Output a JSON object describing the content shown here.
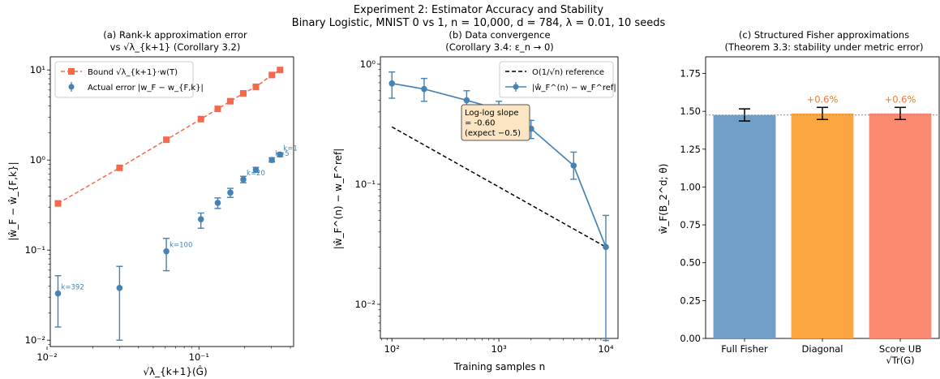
{
  "figure": {
    "suptitle_line1": "Experiment 2: Estimator Accuracy and Stability",
    "suptitle_line2": "Binary Logistic, MNIST 0 vs 1, n = 10,000, d = 784, λ = 0.01, 10 seeds"
  },
  "chart_data": [
    {
      "type": "scatter",
      "title_line1": "(a) Rank-k approximation error",
      "title_line2": "vs √λ_{k+1} (Corollary 3.2)",
      "xlabel": "√λ_{k+1}(Ĝ)",
      "ylabel": "|ŵ_F − ŵ_{F,k}|",
      "xscale": "log",
      "yscale": "log",
      "xlim": [
        0.0105,
        0.42
      ],
      "ylim": [
        0.0085,
        14
      ],
      "xticks": [
        0.01,
        0.1
      ],
      "xtick_labels": [
        "10⁻²",
        "10⁻¹"
      ],
      "yticks": [
        0.01,
        0.1,
        1,
        10
      ],
      "ytick_labels": [
        "10⁻²",
        "10⁻¹",
        "10⁰",
        "10¹"
      ],
      "legend_position": "top-left",
      "series": [
        {
          "name": "Bound √λ_{k+1}·w(T)",
          "color": "#f4694b",
          "marker": "square",
          "line": "dashed",
          "x": [
            0.0118,
            0.03,
            0.061,
            0.103,
            0.133,
            0.161,
            0.196,
            0.237,
            0.302,
            0.342
          ],
          "y": [
            0.33,
            0.82,
            1.68,
            2.85,
            3.7,
            4.5,
            5.5,
            6.5,
            8.8,
            10.0
          ]
        },
        {
          "name": "Actual error |w_F − w_{F,k}|",
          "color": "#4682b4",
          "marker": "circle",
          "x": [
            0.0118,
            0.03,
            0.061,
            0.103,
            0.133,
            0.161,
            0.196,
            0.237,
            0.302,
            0.342
          ],
          "y": [
            0.033,
            0.038,
            0.097,
            0.22,
            0.335,
            0.435,
            0.61,
            0.78,
            1.0,
            1.15
          ],
          "err_low": [
            0.014,
            0.01,
            0.059,
            0.175,
            0.29,
            0.385,
            0.56,
            0.73,
            0.95,
            1.09
          ],
          "err_high": [
            0.052,
            0.066,
            0.135,
            0.258,
            0.38,
            0.485,
            0.66,
            0.83,
            1.06,
            1.2
          ],
          "labels": [
            {
              "index": 0,
              "text": "k=392"
            },
            {
              "index": 2,
              "text": "k=100"
            },
            {
              "index": 6,
              "text": "k=20"
            },
            {
              "index": 8,
              "text": "k=5"
            },
            {
              "index": 9,
              "text": "k=1"
            }
          ]
        }
      ]
    },
    {
      "type": "line",
      "title_line1": "(b) Data convergence",
      "title_line2": "(Corollary 3.4: ε_n → 0)",
      "xlabel": "Training samples n",
      "ylabel": "|ŵ_F^(n) − w_F^ref|",
      "xscale": "log",
      "yscale": "log",
      "xlim": [
        78,
        13000
      ],
      "ylim": [
        0.0052,
        1.15
      ],
      "xticks": [
        100,
        1000,
        10000
      ],
      "xtick_labels": [
        "10²",
        "10³",
        "10⁴"
      ],
      "yticks": [
        0.01,
        0.1,
        1
      ],
      "ytick_labels": [
        "10⁻²",
        "10⁻¹",
        "10⁰"
      ],
      "legend_position": "top-right",
      "annotation_lines": [
        "Log-log slope",
        "= -0.60",
        "(expect −0.5)"
      ],
      "series": [
        {
          "name": "O(1/√n) reference",
          "color": "#000000",
          "line": "dashed",
          "x": [
            100,
            10000
          ],
          "y": [
            0.3,
            0.03
          ]
        },
        {
          "name": "|ŵ_F^(n) − w_F^ref|",
          "color": "#4682b4",
          "marker": "circle",
          "x": [
            100,
            200,
            500,
            1000,
            2000,
            5000,
            10000
          ],
          "y": [
            0.69,
            0.62,
            0.5,
            0.42,
            0.29,
            0.143,
            0.03
          ],
          "err_low": [
            0.52,
            0.49,
            0.42,
            0.37,
            0.24,
            0.11,
            0.005
          ],
          "err_high": [
            0.86,
            0.76,
            0.6,
            0.49,
            0.34,
            0.185,
            0.055
          ]
        }
      ]
    },
    {
      "type": "bar",
      "title_line1": "(c) Structured Fisher approximations",
      "title_line2": "(Theorem 3.3: stability under metric error)",
      "xlabel": "",
      "ylabel": "ŵ_F(B_2^d; θ)",
      "ylim": [
        0,
        1.86
      ],
      "yticks": [
        0.0,
        0.25,
        0.5,
        0.75,
        1.0,
        1.25,
        1.5,
        1.75
      ],
      "ytick_labels": [
        "0.00",
        "0.25",
        "0.50",
        "0.75",
        "1.00",
        "1.25",
        "1.50",
        "1.75"
      ],
      "reference_line": 1.476,
      "categories": [
        "Full Fisher",
        "Diagonal",
        "Score UB"
      ],
      "category_sublabels": [
        "",
        "",
        "√Tr(G)"
      ],
      "values": [
        1.476,
        1.486,
        1.486
      ],
      "errors": [
        0.04,
        0.04,
        0.04
      ],
      "bar_labels": [
        "",
        "+0.6%",
        "+0.6%"
      ],
      "colors": [
        "#729fc7",
        "#fba641",
        "#fc8a73"
      ],
      "label_color": "#f5772a"
    }
  ]
}
